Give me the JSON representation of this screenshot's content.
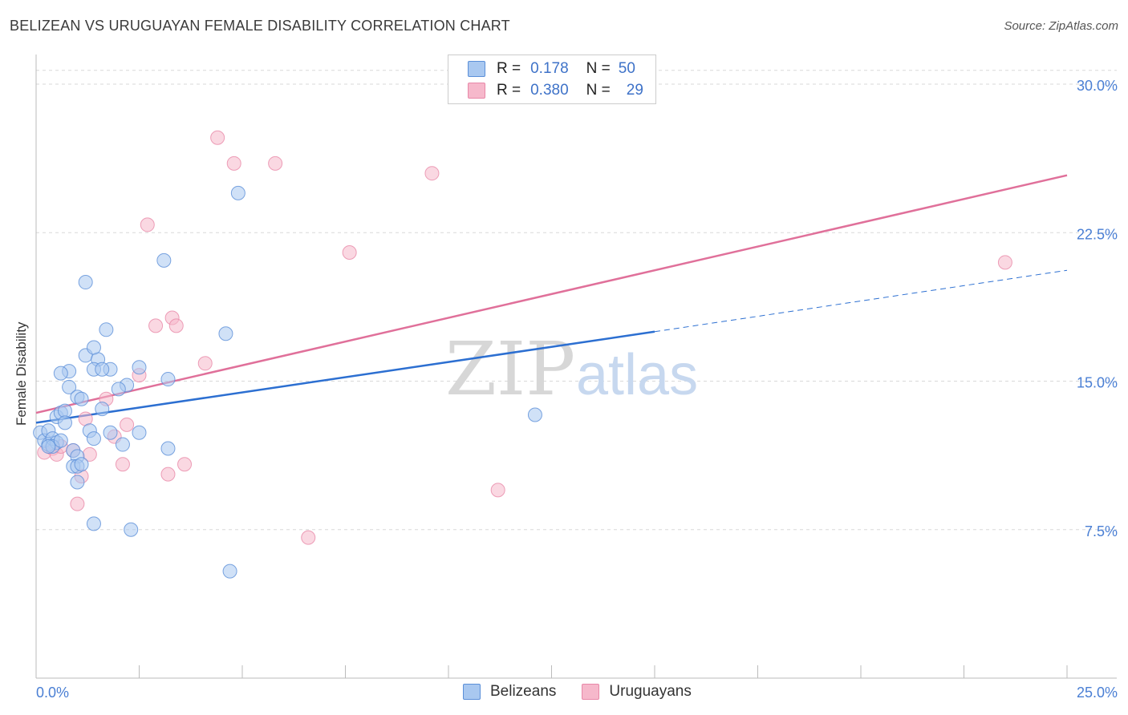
{
  "title": "BELIZEAN VS URUGUAYAN FEMALE DISABILITY CORRELATION CHART",
  "source": "Source: ZipAtlas.com",
  "watermark": {
    "zip": "ZIP",
    "atlas": "atlas"
  },
  "legend": {
    "rows": [
      {
        "r_label": "R =",
        "r_value": "0.178",
        "n_label": "N =",
        "n_value": "50"
      },
      {
        "r_label": "R =",
        "r_value": "0.380",
        "n_label": "N =",
        "n_value": "29"
      }
    ]
  },
  "bottom_legend": [
    "Belizeans",
    "Uruguayans"
  ],
  "colors": {
    "blue_fill": "#a9c8f0",
    "blue_stroke": "#5b8fd8",
    "blue_line": "#2c6fd1",
    "pink_fill": "#f6b8cb",
    "pink_stroke": "#e888a8",
    "pink_line": "#e0709a",
    "grid": "#d8d8d8",
    "axis_text": "#4a7fd4"
  },
  "chart_data": {
    "type": "scatter",
    "title": "BELIZEAN VS URUGUAYAN FEMALE DISABILITY CORRELATION CHART",
    "xlabel": "",
    "ylabel": "Female Disability",
    "xlim": [
      0,
      25
    ],
    "ylim": [
      0,
      31.5
    ],
    "x_tick_labels": [
      "0.0%",
      "25.0%"
    ],
    "y_ticks": [
      7.5,
      15.0,
      22.5,
      30.0
    ],
    "y_tick_labels": [
      "7.5%",
      "15.0%",
      "22.5%",
      "30.0%"
    ],
    "grid": true,
    "series": [
      {
        "name": "Belizeans",
        "r": 0.178,
        "n": 50,
        "trend": {
          "x": [
            0,
            15
          ],
          "y": [
            12.9,
            17.5
          ],
          "dashed_to": [
            25,
            20.6
          ]
        },
        "points": [
          [
            0.1,
            12.4
          ],
          [
            0.2,
            12.0
          ],
          [
            0.3,
            12.5
          ],
          [
            0.3,
            11.8
          ],
          [
            0.4,
            12.1
          ],
          [
            0.5,
            11.9
          ],
          [
            0.4,
            11.7
          ],
          [
            0.6,
            12.0
          ],
          [
            0.5,
            13.2
          ],
          [
            0.6,
            13.4
          ],
          [
            0.7,
            13.5
          ],
          [
            0.7,
            12.9
          ],
          [
            0.8,
            14.7
          ],
          [
            1.0,
            14.2
          ],
          [
            1.1,
            14.1
          ],
          [
            0.8,
            15.5
          ],
          [
            0.6,
            15.4
          ],
          [
            1.2,
            16.3
          ],
          [
            1.5,
            16.1
          ],
          [
            1.4,
            15.6
          ],
          [
            1.8,
            15.6
          ],
          [
            1.6,
            15.6
          ],
          [
            1.4,
            16.7
          ],
          [
            1.7,
            17.6
          ],
          [
            1.2,
            20.0
          ],
          [
            1.6,
            13.6
          ],
          [
            1.3,
            12.5
          ],
          [
            1.4,
            12.1
          ],
          [
            1.8,
            12.4
          ],
          [
            2.1,
            11.8
          ],
          [
            2.5,
            12.4
          ],
          [
            2.2,
            14.8
          ],
          [
            2.0,
            14.6
          ],
          [
            2.5,
            15.7
          ],
          [
            3.2,
            15.1
          ],
          [
            3.1,
            21.1
          ],
          [
            3.2,
            11.6
          ],
          [
            4.6,
            17.4
          ],
          [
            4.9,
            24.5
          ],
          [
            0.9,
            11.5
          ],
          [
            1.0,
            11.2
          ],
          [
            0.9,
            10.7
          ],
          [
            1.0,
            10.7
          ],
          [
            1.0,
            9.9
          ],
          [
            1.4,
            7.8
          ],
          [
            2.3,
            7.5
          ],
          [
            4.7,
            5.4
          ],
          [
            12.1,
            13.3
          ],
          [
            0.3,
            11.7
          ],
          [
            1.1,
            10.8
          ]
        ]
      },
      {
        "name": "Uruguayans",
        "r": 0.38,
        "n": 29,
        "trend": {
          "x": [
            0,
            25
          ],
          "y": [
            13.4,
            25.4
          ]
        },
        "points": [
          [
            0.2,
            11.4
          ],
          [
            0.4,
            11.6
          ],
          [
            0.5,
            11.3
          ],
          [
            0.6,
            11.7
          ],
          [
            0.9,
            11.5
          ],
          [
            1.3,
            11.3
          ],
          [
            1.0,
            8.8
          ],
          [
            1.1,
            10.2
          ],
          [
            1.2,
            13.1
          ],
          [
            1.7,
            14.1
          ],
          [
            1.9,
            12.2
          ],
          [
            2.1,
            10.8
          ],
          [
            2.2,
            12.8
          ],
          [
            2.5,
            15.3
          ],
          [
            2.7,
            22.9
          ],
          [
            2.9,
            17.8
          ],
          [
            3.2,
            10.3
          ],
          [
            3.3,
            18.2
          ],
          [
            3.4,
            17.8
          ],
          [
            3.6,
            10.8
          ],
          [
            4.1,
            15.9
          ],
          [
            4.4,
            27.3
          ],
          [
            4.8,
            26.0
          ],
          [
            5.8,
            26.0
          ],
          [
            6.6,
            7.1
          ],
          [
            7.6,
            21.5
          ],
          [
            9.6,
            25.5
          ],
          [
            11.2,
            9.5
          ],
          [
            23.5,
            21.0
          ]
        ]
      }
    ]
  }
}
